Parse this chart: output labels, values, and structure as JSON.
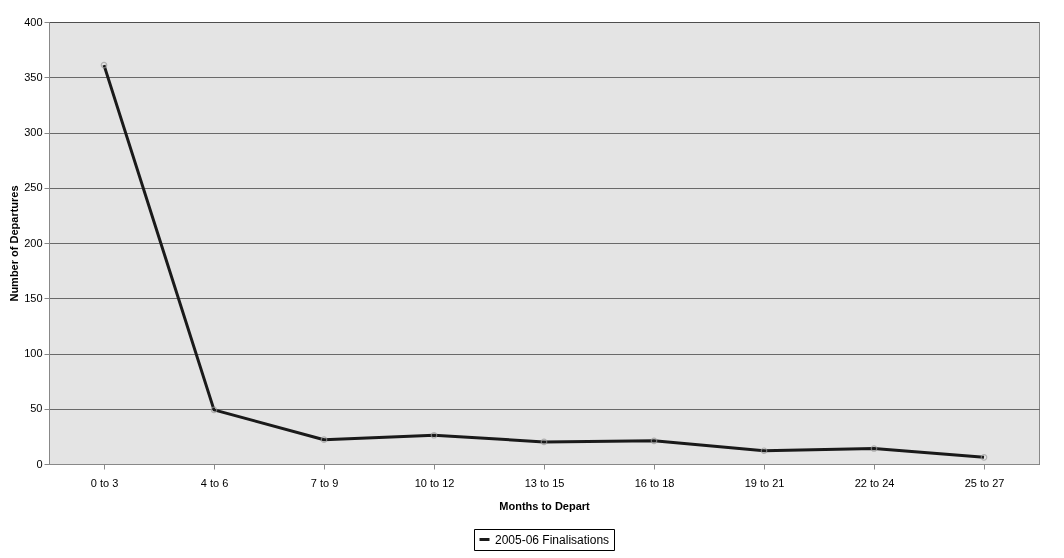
{
  "chart_data": {
    "type": "line",
    "xlabel": "Months to Depart",
    "ylabel": "Number of Departures",
    "categories": [
      "0 to 3",
      "4 to 6",
      "7 to 9",
      "10 to 12",
      "13 to 15",
      "16 to 18",
      "19 to 21",
      "22 to 24",
      "25 to 27"
    ],
    "series": [
      {
        "name": "2005-06 Finalisations",
        "color": "#1a1a1a",
        "values": [
          361,
          49,
          22,
          26,
          20,
          21,
          12,
          14,
          6
        ]
      }
    ],
    "ylim": [
      0,
      400
    ],
    "yticks": [
      0,
      50,
      100,
      150,
      200,
      250,
      300,
      350,
      400
    ],
    "grid": "y",
    "legend": "bottom",
    "marker": "circle",
    "line_style": "solid"
  }
}
